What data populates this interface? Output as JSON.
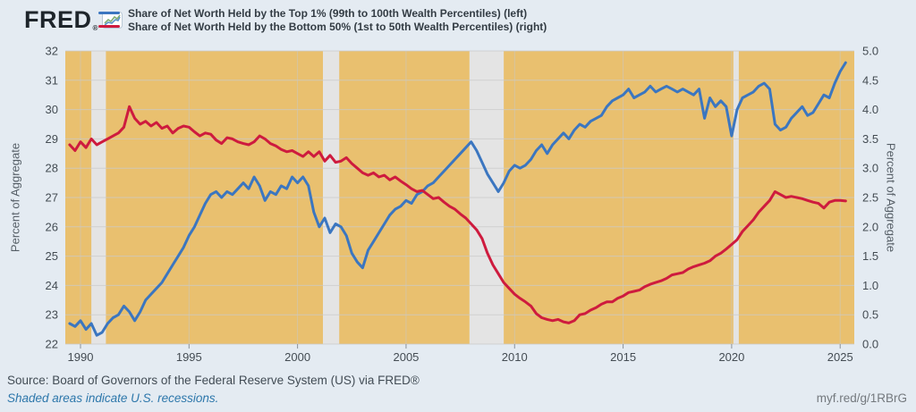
{
  "header": {
    "logo_text": "FRED",
    "logo_reg": "®"
  },
  "legend": {
    "series": [
      {
        "label": "Share of Net Worth Held by the Top 1% (99th to 100th Wealth Percentiles) (left)",
        "color": "#3b76c0"
      },
      {
        "label": "Share of Net Worth Held by the Bottom 50% (1st to 50th Wealth Percentiles) (right)",
        "color": "#ce1b3e"
      }
    ]
  },
  "footer": {
    "source": "Source: Board of Governors of the Federal Reserve System (US) via FRED®",
    "recession_note": "Shaded areas indicate U.S. recessions.",
    "short_url": "myf.red/g/1RBrG"
  },
  "chart_data": {
    "type": "line",
    "x_start": 1989.5,
    "x_step": 0.25,
    "xlim": [
      1989.3,
      2025.65
    ],
    "x_ticks": [
      1990,
      1995,
      2000,
      2005,
      2010,
      2015,
      2020,
      2025
    ],
    "left_axis": {
      "label": "Percent of Aggregate",
      "lim": [
        22,
        32
      ],
      "ticks": [
        22,
        23,
        24,
        25,
        26,
        27,
        28,
        29,
        30,
        31,
        32
      ]
    },
    "right_axis": {
      "label": "Percent of Aggregate",
      "lim": [
        0,
        5
      ],
      "ticks": [
        0.0,
        0.5,
        1.0,
        1.5,
        2.0,
        2.5,
        3.0,
        3.5,
        4.0,
        4.5,
        5.0
      ]
    },
    "recessions": [
      [
        1990.5,
        1991.17
      ],
      [
        2001.17,
        2001.92
      ],
      [
        2007.92,
        2009.5
      ],
      [
        2020.08,
        2020.33
      ]
    ],
    "plot_bg": "#e9c06f",
    "recession_color": "#e4e4e4",
    "grid_color": "#c9c9c9",
    "tick_text_color": "#444c53",
    "series": [
      {
        "name": "Share of Net Worth Held by the Top 1% (99th to 100th Wealth Percentiles)",
        "axis": "left",
        "color": "#3b76c0",
        "values": [
          22.7,
          22.6,
          22.8,
          22.5,
          22.7,
          22.3,
          22.4,
          22.7,
          22.9,
          23.0,
          23.3,
          23.1,
          22.8,
          23.1,
          23.5,
          23.7,
          23.9,
          24.1,
          24.4,
          24.7,
          25.0,
          25.3,
          25.7,
          26.0,
          26.4,
          26.8,
          27.1,
          27.2,
          27.0,
          27.2,
          27.1,
          27.3,
          27.5,
          27.3,
          27.7,
          27.4,
          26.9,
          27.2,
          27.1,
          27.4,
          27.3,
          27.7,
          27.5,
          27.7,
          27.4,
          26.5,
          26.0,
          26.3,
          25.8,
          26.1,
          26.0,
          25.7,
          25.1,
          24.8,
          24.6,
          25.2,
          25.5,
          25.8,
          26.1,
          26.4,
          26.6,
          26.7,
          26.9,
          26.8,
          27.1,
          27.2,
          27.4,
          27.5,
          27.7,
          27.9,
          28.1,
          28.3,
          28.5,
          28.7,
          28.9,
          28.6,
          28.2,
          27.8,
          27.5,
          27.2,
          27.5,
          27.9,
          28.1,
          28.0,
          28.1,
          28.3,
          28.6,
          28.8,
          28.5,
          28.8,
          29.0,
          29.2,
          29.0,
          29.3,
          29.5,
          29.4,
          29.6,
          29.7,
          29.8,
          30.1,
          30.3,
          30.4,
          30.5,
          30.7,
          30.4,
          30.5,
          30.6,
          30.8,
          30.6,
          30.7,
          30.8,
          30.7,
          30.6,
          30.7,
          30.6,
          30.5,
          30.7,
          29.7,
          30.4,
          30.1,
          30.3,
          30.1,
          29.1,
          30.0,
          30.4,
          30.5,
          30.6,
          30.8,
          30.9,
          30.7,
          29.5,
          29.3,
          29.4,
          29.7,
          29.9,
          30.1,
          29.8,
          29.9,
          30.2,
          30.5,
          30.4,
          30.9,
          31.3,
          31.6
        ]
      },
      {
        "name": "Share of Net Worth Held by the Bottom 50% (1st to 50th Wealth Percentiles)",
        "axis": "right",
        "color": "#ce1b3e",
        "values": [
          3.4,
          3.3,
          3.45,
          3.35,
          3.5,
          3.4,
          3.45,
          3.5,
          3.55,
          3.6,
          3.7,
          4.05,
          3.85,
          3.75,
          3.8,
          3.72,
          3.78,
          3.68,
          3.72,
          3.6,
          3.68,
          3.72,
          3.7,
          3.62,
          3.55,
          3.6,
          3.58,
          3.48,
          3.42,
          3.52,
          3.5,
          3.45,
          3.42,
          3.4,
          3.45,
          3.55,
          3.5,
          3.42,
          3.38,
          3.32,
          3.28,
          3.3,
          3.25,
          3.2,
          3.28,
          3.2,
          3.28,
          3.12,
          3.22,
          3.1,
          3.12,
          3.18,
          3.08,
          3.0,
          2.92,
          2.88,
          2.92,
          2.85,
          2.88,
          2.8,
          2.85,
          2.78,
          2.72,
          2.65,
          2.6,
          2.62,
          2.55,
          2.48,
          2.5,
          2.42,
          2.35,
          2.3,
          2.22,
          2.15,
          2.05,
          1.95,
          1.8,
          1.55,
          1.35,
          1.2,
          1.05,
          0.95,
          0.85,
          0.78,
          0.72,
          0.65,
          0.52,
          0.45,
          0.42,
          0.4,
          0.42,
          0.38,
          0.36,
          0.4,
          0.5,
          0.52,
          0.58,
          0.62,
          0.68,
          0.72,
          0.72,
          0.78,
          0.82,
          0.88,
          0.9,
          0.92,
          0.98,
          1.02,
          1.05,
          1.08,
          1.12,
          1.18,
          1.2,
          1.22,
          1.28,
          1.32,
          1.35,
          1.38,
          1.42,
          1.5,
          1.55,
          1.62,
          1.7,
          1.78,
          1.92,
          2.02,
          2.12,
          2.25,
          2.35,
          2.45,
          2.6,
          2.55,
          2.5,
          2.52,
          2.5,
          2.48,
          2.45,
          2.42,
          2.4,
          2.32,
          2.42,
          2.45,
          2.45,
          2.44
        ]
      }
    ]
  }
}
